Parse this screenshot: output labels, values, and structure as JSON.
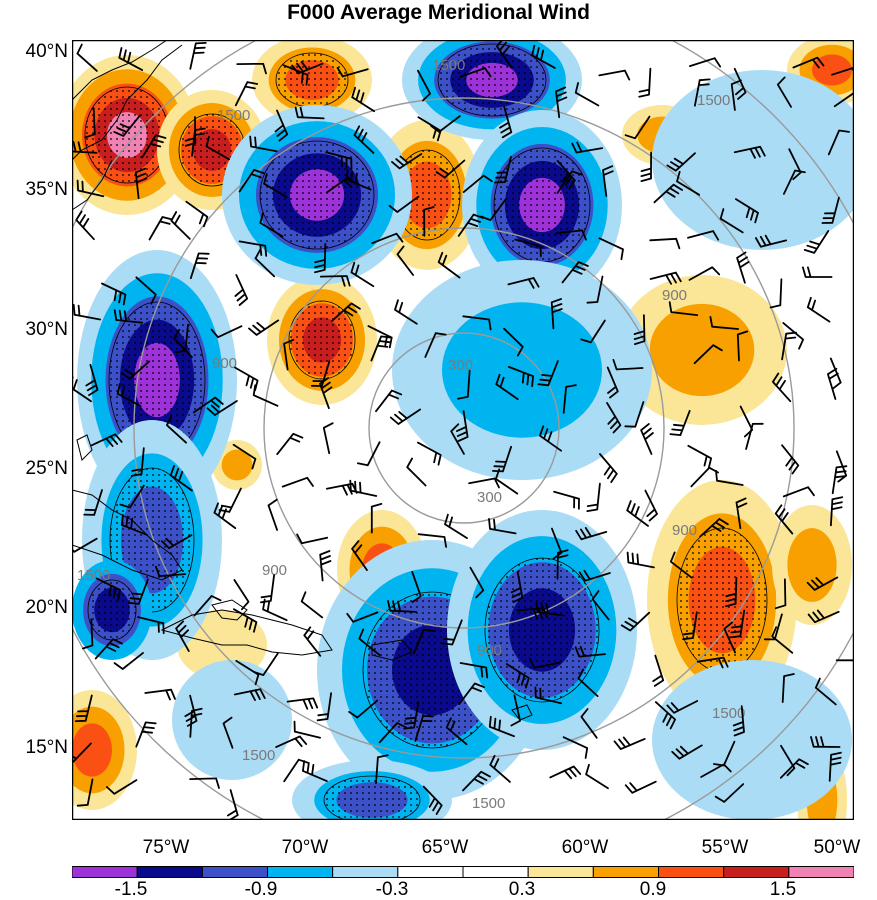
{
  "title": "F000 Average Meridional Wind",
  "lat_labels": [
    "40°N",
    "35°N",
    "30°N",
    "25°N",
    "20°N",
    "15°N"
  ],
  "lon_labels": [
    "75°W",
    "70°W",
    "65°W",
    "60°W",
    "55°W",
    "50°W"
  ],
  "contour_labels": [
    "300",
    "300",
    "900",
    "900",
    "900",
    "900",
    "900",
    "1500",
    "1500",
    "1500",
    "1500",
    "1500",
    "1500",
    "1500"
  ],
  "colorbar": {
    "tick_labels": [
      "-1.5",
      "-0.9",
      "-0.3",
      "0.3",
      "0.9",
      "1.5"
    ],
    "colors": [
      "#9d32d8",
      "#0a0a8c",
      "#3c50c8",
      "#00b4f0",
      "#aadcf5",
      "#ffffff",
      "#ffffff",
      "#fae696",
      "#f7a000",
      "#fa5014",
      "#c81e1e",
      "#f082b4"
    ]
  },
  "chart_data": {
    "type": "contour map",
    "title": "F000 Average Meridional Wind",
    "lat_range": [
      "12.5°N",
      "40.5°N"
    ],
    "lon_range": [
      "78°W",
      "50°W"
    ],
    "shading_levels": [
      -1.5,
      -1.2,
      -0.9,
      -0.6,
      -0.3,
      0,
      0.3,
      0.6,
      0.9,
      1.2,
      1.5
    ],
    "contour_levels": [
      300,
      900,
      1500
    ],
    "overlays": [
      "wind barbs",
      "stippling",
      "coastlines"
    ]
  }
}
